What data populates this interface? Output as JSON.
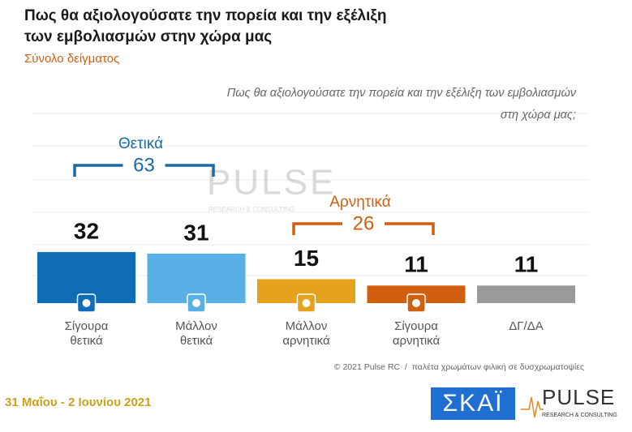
{
  "chart_data": {
    "type": "bar",
    "title": [
      "Πως θα αξιολογούσατε την πορεία και την εξέλιξη",
      "των εμβολιασμών στην χώρα μας"
    ],
    "subtitle": "Σύνολο δείγματος",
    "question": [
      "Πως θα αξιολογούσατε την πορεία και την εξέλιξη των εμβολιασμών",
      "στη χώρα μας;"
    ],
    "categories": [
      [
        "Σίγουρα",
        "θετικά"
      ],
      [
        "Μάλλον",
        "θετικά"
      ],
      [
        "Μάλλον",
        "αρνητικά"
      ],
      [
        "Σίγουρα",
        "αρνητικά"
      ],
      [
        "ΔΓ/ΔΑ"
      ]
    ],
    "values": [
      32,
      31,
      15,
      11,
      11
    ],
    "colors": [
      "#0f6db5",
      "#58b0e6",
      "#e5a21c",
      "#d0600f",
      "#9a9a9a"
    ],
    "groups": [
      {
        "name": "Θετικά",
        "value": 63,
        "color": "#1a6aa6"
      },
      {
        "name": "Αρνητικά",
        "value": 26,
        "color": "#d0600f"
      }
    ],
    "footnote": "© 2021 Pulse RC  /  παλέτα χρωμάτων φιλική σε δυσχρωματοψίες",
    "date": "31 Μαΐου - 2 Ιουνίου 2021",
    "logos": [
      "ΣΚΑΪ",
      "PULSE",
      "RESEARCH & CONSULTING"
    ]
  }
}
